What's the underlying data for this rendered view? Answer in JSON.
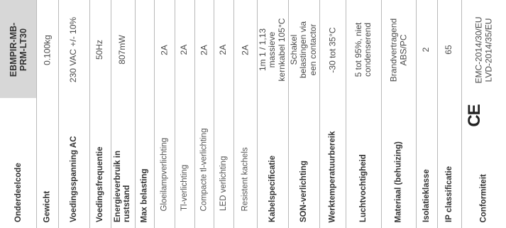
{
  "header": {
    "label": "Onderdeelcode",
    "value": "EBMPIR-MB-\nPRM-LT30"
  },
  "rows": [
    {
      "label": "Gewicht",
      "value": "0.100kg",
      "type": "main"
    },
    {
      "label": "Voedingsspanning AC",
      "value": "230 VAC +/- 10%",
      "type": "main"
    },
    {
      "label": "Voedingsfrequentie",
      "value": "50Hz",
      "type": "main"
    },
    {
      "label": "Energieverbruik in\nruststand",
      "value": "807mW",
      "type": "main"
    },
    {
      "label": "Max belasting",
      "value": "",
      "type": "main"
    },
    {
      "label": "Gloeilampverlichting",
      "value": "2A",
      "type": "sub"
    },
    {
      "label": "Tl-verlichting",
      "value": "2A",
      "type": "sub"
    },
    {
      "label": "Compacte tl-verlichting",
      "value": "2A",
      "type": "sub"
    },
    {
      "label": "LED verlichting",
      "value": "2A",
      "type": "sub"
    },
    {
      "label": "Resistent kachels",
      "value": "2A",
      "type": "sub"
    },
    {
      "label": "Kabelspecificatie",
      "value": "1m 1 / 1,13\nmassieve\nkernkabel 105°C",
      "type": "main"
    },
    {
      "label": "SON-verlichting",
      "value": "Schakel\nbelastingen via\neen contactor",
      "type": "main"
    },
    {
      "label": "Werktemperatuurbereik",
      "value": "-30 tot 35°C",
      "type": "main"
    },
    {
      "label": "Luchtvochtigheid",
      "value": "5 tot 95%, niet\ncondenserend",
      "type": "main"
    },
    {
      "label": "Materiaal (behuizing)",
      "value": "Brandvertragend\nABS/PC",
      "type": "main"
    },
    {
      "label": "Isolatieklasse",
      "value": "2",
      "type": "main"
    },
    {
      "label": "IP classificatie",
      "value": "65",
      "type": "main"
    },
    {
      "label": "Conformiteit",
      "value": "EMC-2014/30/EU\nLVD-2014/35/EU",
      "type": "main",
      "mark": "CE"
    }
  ]
}
